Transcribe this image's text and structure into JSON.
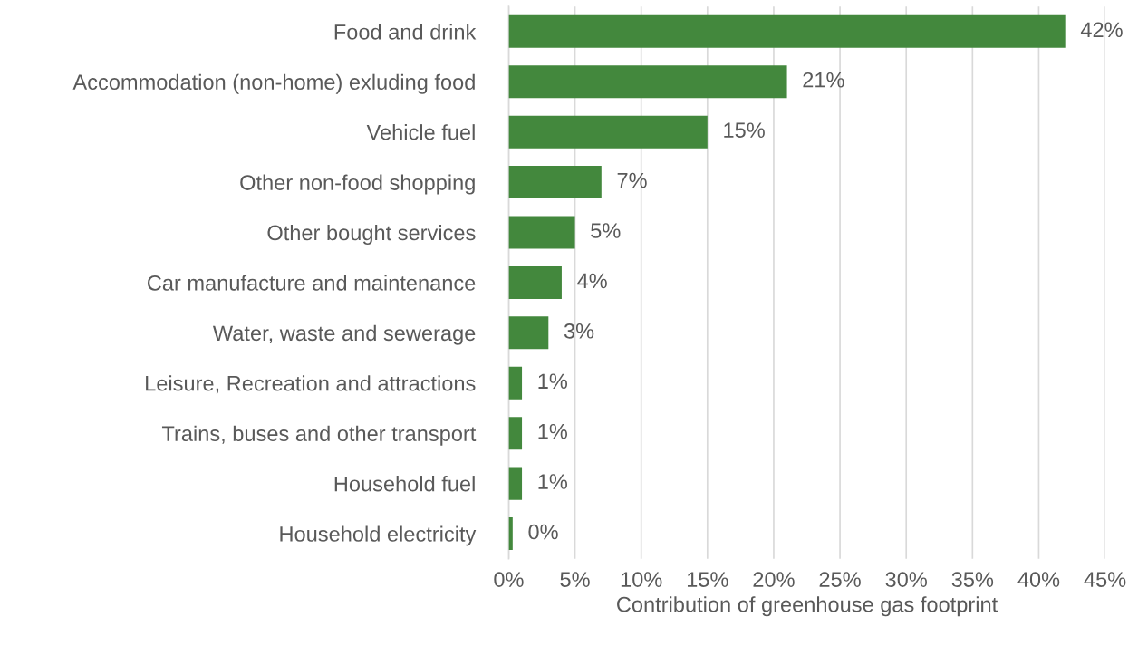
{
  "chart_data": {
    "type": "bar",
    "orientation": "horizontal",
    "xlabel": "Contribution of greenhouse gas footprint",
    "categories": [
      "Food and drink",
      "Accommodation (non-home) exluding food",
      "Vehicle fuel",
      "Other non-food shopping",
      "Other bought services",
      "Car manufacture and maintenance",
      "Water, waste and sewerage",
      "Leisure, Recreation and attractions",
      "Trains, buses and other transport",
      "Household fuel",
      "Household electricity"
    ],
    "values": [
      42,
      21,
      15,
      7,
      5,
      4,
      3,
      1,
      1,
      1,
      0.3
    ],
    "value_labels": [
      "42%",
      "21%",
      "15%",
      "7%",
      "5%",
      "4%",
      "3%",
      "1%",
      "1%",
      "1%",
      "0%"
    ],
    "color": "#43883d",
    "xlim": [
      0,
      45
    ],
    "xticks": [
      {
        "value": 0,
        "label": "0%"
      },
      {
        "value": 5,
        "label": "5%"
      },
      {
        "value": 10,
        "label": "10%"
      },
      {
        "value": 15,
        "label": "15%"
      },
      {
        "value": 20,
        "label": "20%"
      },
      {
        "value": 25,
        "label": "25%"
      },
      {
        "value": 30,
        "label": "30%"
      },
      {
        "value": 35,
        "label": "35%"
      },
      {
        "value": 40,
        "label": "40%"
      },
      {
        "value": 45,
        "label": "45%"
      }
    ],
    "grid": "x",
    "legend": false
  }
}
